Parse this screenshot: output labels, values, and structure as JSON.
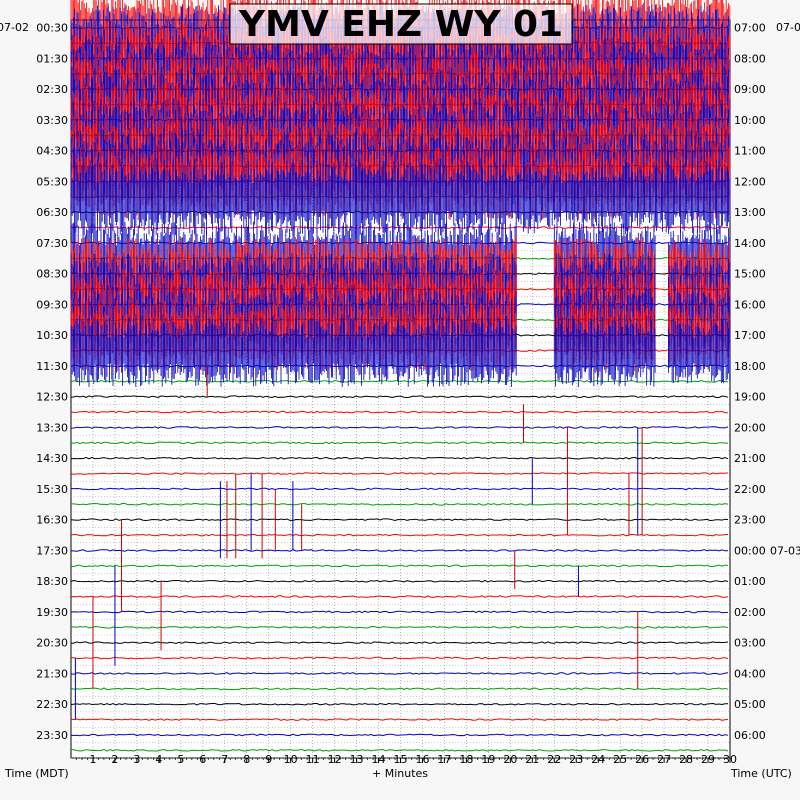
{
  "chart_data": {
    "type": "line",
    "title": "YMV EHZ WY 01",
    "xlabel": "+ Minutes",
    "left_axis_label": "Time (MDT)",
    "right_axis_label": "Time (UTC)",
    "left_date": "07-02",
    "right_date": "07-02",
    "midnight_date": "07-03",
    "x_ticks": [
      "1",
      "2",
      "3",
      "4",
      "5",
      "6",
      "7",
      "8",
      "9",
      "10",
      "11",
      "12",
      "13",
      "14",
      "15",
      "16",
      "17",
      "18",
      "19",
      "20",
      "21",
      "22",
      "23",
      "24",
      "25",
      "26",
      "27",
      "28",
      "29",
      "30"
    ],
    "xlim": [
      0,
      30
    ],
    "left_hour_labels": [
      "00:30",
      "01:30",
      "02:30",
      "03:30",
      "04:30",
      "05:30",
      "06:30",
      "07:30",
      "08:30",
      "09:30",
      "10:30",
      "11:30",
      "12:30",
      "13:30",
      "14:30",
      "15:30",
      "16:30",
      "17:30",
      "18:30",
      "19:30",
      "20:30",
      "21:30",
      "22:30",
      "23:30"
    ],
    "right_hour_labels": [
      "07:00",
      "08:00",
      "09:00",
      "10:00",
      "11:00",
      "12:00",
      "13:00",
      "14:00",
      "15:00",
      "16:00",
      "17:00",
      "18:00",
      "19:00",
      "20:00",
      "21:00",
      "22:00",
      "23:00",
      "00:00",
      "01:00",
      "02:00",
      "03:00",
      "04:00",
      "05:00",
      "06:00"
    ],
    "trace_count": 48,
    "trace_colors": [
      "#000000",
      "#ff0000",
      "#0000c0",
      "#00a000"
    ],
    "grid": "dotted",
    "noise_segments": [
      {
        "trace_from": 0,
        "trace_to": 11,
        "x_from": 0.0,
        "x_to": 30.0,
        "amplitude": 0.9
      },
      {
        "trace_from": 15,
        "trace_to": 21,
        "x_from": 0.0,
        "x_to": 20.3,
        "amplitude": 0.85
      },
      {
        "trace_from": 15,
        "trace_to": 21,
        "x_from": 22.0,
        "x_to": 26.6,
        "amplitude": 0.85
      },
      {
        "trace_from": 15,
        "trace_to": 21,
        "x_from": 27.2,
        "x_to": 30.0,
        "amplitude": 0.8
      }
    ],
    "spikes": [
      {
        "x": 1.2,
        "from": 5.0,
        "to": 7.0
      },
      {
        "x": 22.9,
        "from": 10.0,
        "to": 14.0
      },
      {
        "x": 24.5,
        "from": 5.0,
        "to": 6.5
      },
      {
        "x": 6.2,
        "from": 22.0,
        "to": 24.0
      },
      {
        "x": 6.8,
        "from": 29.5,
        "to": 34.5
      },
      {
        "x": 7.1,
        "from": 29.5,
        "to": 34.5
      },
      {
        "x": 7.5,
        "from": 29.0,
        "to": 34.5
      },
      {
        "x": 8.2,
        "from": 29.0,
        "to": 34.0
      },
      {
        "x": 8.7,
        "from": 29.0,
        "to": 34.5
      },
      {
        "x": 9.3,
        "from": 30.0,
        "to": 34.0
      },
      {
        "x": 10.1,
        "from": 29.5,
        "to": 34.0
      },
      {
        "x": 10.5,
        "from": 31.0,
        "to": 34.0
      },
      {
        "x": 20.6,
        "from": 24.5,
        "to": 27.0
      },
      {
        "x": 21.0,
        "from": 28.0,
        "to": 31.0
      },
      {
        "x": 22.6,
        "from": 26.0,
        "to": 33.0
      },
      {
        "x": 25.4,
        "from": 29.0,
        "to": 33.0
      },
      {
        "x": 25.8,
        "from": 26.0,
        "to": 33.0
      },
      {
        "x": 26.0,
        "from": 26.0,
        "to": 33.0
      },
      {
        "x": 1.0,
        "from": 37.0,
        "to": 43.0
      },
      {
        "x": 2.0,
        "from": 35.0,
        "to": 41.5
      },
      {
        "x": 2.3,
        "from": 32.0,
        "to": 38.0
      },
      {
        "x": 4.1,
        "from": 36.0,
        "to": 40.5
      },
      {
        "x": 0.2,
        "from": 41.0,
        "to": 45.0
      },
      {
        "x": 25.8,
        "from": 38.0,
        "to": 43.0
      },
      {
        "x": 20.2,
        "from": 34.0,
        "to": 36.5
      },
      {
        "x": 23.1,
        "from": 35.0,
        "to": 37.0
      }
    ]
  }
}
